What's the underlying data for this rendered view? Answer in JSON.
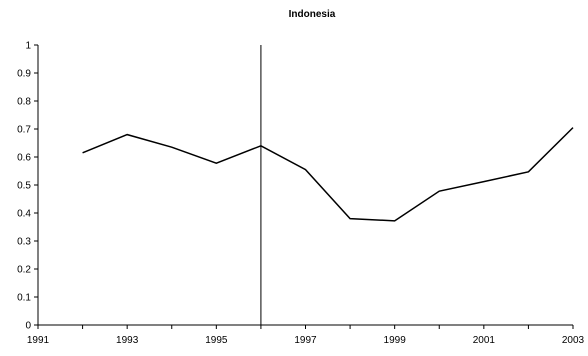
{
  "chart_data": {
    "type": "line",
    "title": "Indonesia",
    "xlabel": "",
    "ylabel": "",
    "xlim": [
      1991,
      2003
    ],
    "ylim": [
      0,
      1
    ],
    "x_ticks": [
      "1991",
      "1993",
      "1995",
      "1997",
      "1999",
      "2001",
      "2003"
    ],
    "y_ticks": [
      "0",
      "0.1",
      "0.2",
      "0.3",
      "0.4",
      "0.5",
      "0.6",
      "0.7",
      "0.8",
      "0.9",
      "1"
    ],
    "grid": false,
    "legend": "none",
    "series": [
      {
        "x": [
          1992,
          1993,
          1994,
          1995,
          1996,
          1997,
          1998,
          1999,
          2000,
          2001,
          2002,
          2003
        ],
        "values": [
          0.615,
          0.68,
          0.635,
          0.578,
          0.64,
          0.555,
          0.38,
          0.372,
          0.478,
          0.512,
          0.547,
          0.705
        ],
        "color": "#000000"
      }
    ],
    "reference_lines": [
      {
        "orientation": "vertical",
        "x": 1996
      }
    ]
  }
}
